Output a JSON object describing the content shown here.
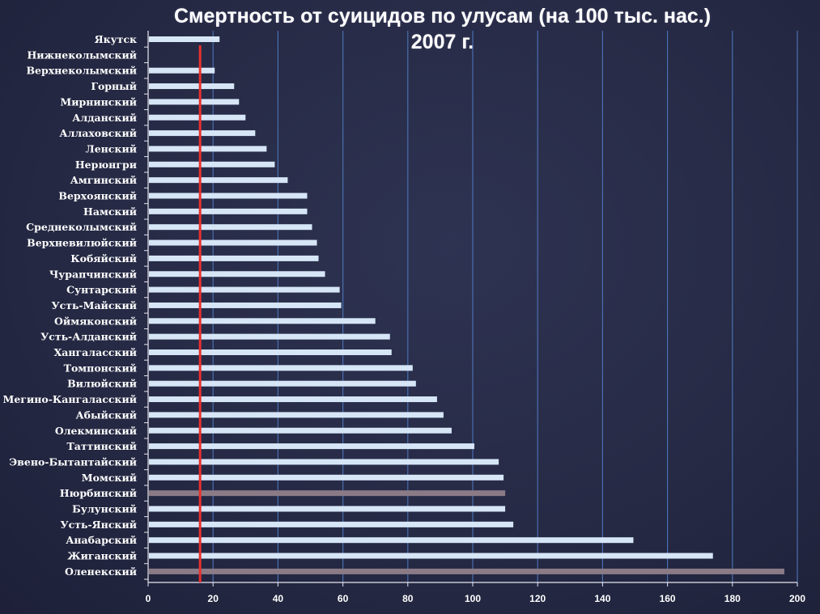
{
  "title": {
    "line1": "Смертность от суицидов по улусам (на 100 тыс. нас.)",
    "line2": "2007 г."
  },
  "chart_data": {
    "type": "bar",
    "orientation": "horizontal",
    "title": "Смертность от суицидов по улусам (на 100 тыс. нас.) 2007 г.",
    "xlabel": "",
    "ylabel": "",
    "xlim": [
      0,
      200
    ],
    "xticks": [
      0,
      20,
      40,
      60,
      80,
      100,
      120,
      140,
      160,
      180,
      200
    ],
    "grid": "vertical",
    "reference_line": {
      "value": 16,
      "color": "#e8312f"
    },
    "bar_color": "#d6e6f7",
    "highlight_color": "#8a7b86",
    "categories": [
      "Якутск",
      "Нижнеколымский",
      "Верхнеколымский",
      "Горный",
      "Мирнинский",
      "Алданский",
      "Аллаховский",
      "Ленский",
      "Нерюнгри",
      "Амгинский",
      "Верхоянский",
      "Намский",
      "Среднеколымский",
      "Верхневилюйский",
      "Кобяйский",
      "Чурапчинский",
      "Сунтарский",
      "Усть-Майский",
      "Оймяконский",
      "Усть-Алданский",
      "Хангаласский",
      "Томпонский",
      "Вилюйский",
      "Мегино-Кангаласский",
      "Абыйский",
      "Олекминский",
      "Таттинский",
      "Эвено-Бытантайский",
      "Момский",
      "Нюрбинский",
      "Булунский",
      "Усть-Янский",
      "Анабарский",
      "Жиганский",
      "Оленекский"
    ],
    "values": [
      22,
      0,
      20.5,
      26.5,
      28,
      30,
      33,
      36.5,
      39,
      43,
      49,
      49,
      50.5,
      52,
      52.5,
      54.5,
      59,
      59.5,
      70,
      74.5,
      75,
      81.5,
      82.5,
      89,
      91,
      93.5,
      100.5,
      108,
      109.5,
      110,
      110,
      112.5,
      149.5,
      174,
      196
    ],
    "highlighted": [
      "Нюрбинский",
      "Оленекский"
    ]
  }
}
